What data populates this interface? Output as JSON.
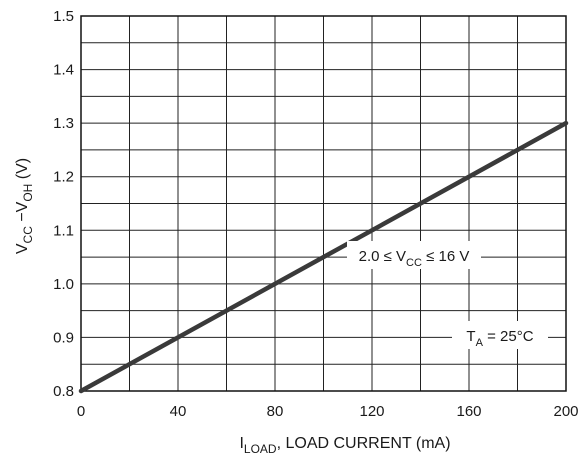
{
  "chart_data": {
    "type": "line",
    "xlabel": {
      "main": "I",
      "sub": "LOAD",
      "rest": ", LOAD CURRENT (mA)"
    },
    "ylabel": {
      "v1": "V",
      "s1": "CC",
      "mid": " −V",
      "s2": "OH",
      "unit": " (V)"
    },
    "xlim": [
      0,
      200
    ],
    "ylim": [
      0.8,
      1.5
    ],
    "x_ticks": [
      0,
      40,
      80,
      120,
      160,
      200
    ],
    "x_tick_labels": [
      "0",
      "40",
      "80",
      "120",
      "160",
      "200"
    ],
    "y_ticks": [
      0.8,
      0.9,
      1.0,
      1.1,
      1.2,
      1.3,
      1.4,
      1.5
    ],
    "y_tick_labels": [
      "0.8",
      "0.9",
      "1.0",
      "1.1",
      "1.2",
      "1.3",
      "1.4",
      "1.5"
    ],
    "x_minor_step": 20,
    "y_minor_step": 0.05,
    "grid": true,
    "series": [
      {
        "x": [
          0,
          200
        ],
        "y": [
          0.8,
          1.3
        ],
        "color": "#3a3a3a"
      }
    ],
    "annotations": {
      "vcc_range": {
        "pre": "2.0 ≤ V",
        "sub": "CC",
        "post": " ≤ 16 V"
      },
      "temperature": {
        "pre": "T",
        "sub": "A",
        "post": " = 25°C"
      }
    }
  }
}
